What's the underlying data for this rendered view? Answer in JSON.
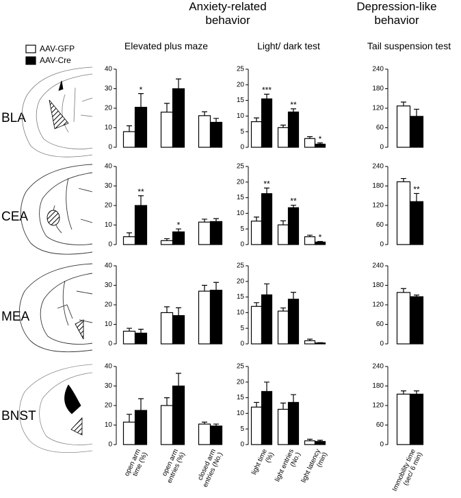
{
  "header": [
    "Anxiety-related behavior",
    "Depression-like behavior"
  ],
  "tests": [
    "Elevated plus maze",
    "Light/ dark test",
    "Tail suspension test"
  ],
  "regions": [
    "BLA",
    "CEA",
    "MEA",
    "BNST"
  ],
  "chart_data": [
    {
      "type": "bar",
      "ylim": [
        0,
        40
      ],
      "yticks": [
        0,
        10,
        20,
        30,
        40
      ],
      "categories": [
        null,
        null,
        null
      ],
      "series": [
        {
          "name": "AAV-GFP",
          "color": "#ffffff",
          "values": [
            8,
            18,
            16.2
          ],
          "errors": [
            3,
            4.5,
            2
          ]
        },
        {
          "name": "AAV-Cre",
          "color": "#000000",
          "values": [
            20.5,
            30,
            12.8
          ],
          "errors": [
            7,
            5,
            2
          ],
          "significance": [
            "*",
            null,
            null
          ]
        }
      ]
    },
    {
      "type": "bar",
      "ylim": [
        0,
        25
      ],
      "yticks": [
        0,
        5,
        10,
        15,
        20,
        25
      ],
      "categories": [
        null,
        null,
        null
      ],
      "series": [
        {
          "color": "#ffffff",
          "values": [
            8.2,
            6.3,
            2.8
          ],
          "errors": [
            1.2,
            0.8,
            0.6
          ]
        },
        {
          "color": "#000000",
          "values": [
            15.5,
            11.3,
            1.0
          ],
          "errors": [
            1.5,
            1,
            0.4
          ],
          "significance": [
            "***",
            "**",
            "*"
          ]
        }
      ]
    },
    {
      "type": "bar",
      "ylim": [
        0,
        240
      ],
      "yticks": [
        0,
        60,
        120,
        180,
        240
      ],
      "categories": [
        null
      ],
      "series": [
        {
          "color": "#ffffff",
          "values": [
            127
          ],
          "errors": [
            12
          ]
        },
        {
          "color": "#000000",
          "values": [
            95
          ],
          "errors": [
            22
          ],
          "significance": [
            null
          ]
        }
      ]
    },
    {
      "type": "bar",
      "ylim": [
        0,
        40
      ],
      "yticks": [
        0,
        10,
        20,
        30,
        40
      ],
      "categories": [
        null,
        null,
        null
      ],
      "series": [
        {
          "color": "#ffffff",
          "values": [
            4,
            2,
            11.5
          ],
          "errors": [
            2,
            1,
            1.5
          ]
        },
        {
          "color": "#000000",
          "values": [
            20,
            6.5,
            11.8
          ],
          "errors": [
            5,
            1.5,
            1.5
          ],
          "significance": [
            "**",
            "*",
            null
          ]
        }
      ]
    },
    {
      "type": "bar",
      "ylim": [
        0,
        25
      ],
      "yticks": [
        0,
        5,
        10,
        15,
        20,
        25
      ],
      "categories": [
        null,
        null,
        null
      ],
      "series": [
        {
          "color": "#ffffff",
          "values": [
            7.5,
            6.3,
            2.5
          ],
          "errors": [
            1.3,
            1.3,
            0.5
          ]
        },
        {
          "color": "#000000",
          "values": [
            16.3,
            11.8,
            0.8
          ],
          "errors": [
            1.8,
            0.8,
            0.2
          ],
          "significance": [
            "**",
            "**",
            "*"
          ]
        }
      ]
    },
    {
      "type": "bar",
      "ylim": [
        0,
        240
      ],
      "yticks": [
        0,
        60,
        120,
        180,
        240
      ],
      "categories": [
        null
      ],
      "series": [
        {
          "color": "#ffffff",
          "values": [
            193
          ],
          "errors": [
            10
          ]
        },
        {
          "color": "#000000",
          "values": [
            132
          ],
          "errors": [
            25
          ],
          "significance": [
            "**"
          ]
        }
      ]
    },
    {
      "type": "bar",
      "ylim": [
        0,
        40
      ],
      "yticks": [
        0,
        10,
        20,
        30,
        40
      ],
      "categories": [
        null,
        null,
        null
      ],
      "series": [
        {
          "color": "#ffffff",
          "values": [
            6.5,
            16,
            27
          ],
          "errors": [
            1.5,
            3,
            3
          ]
        },
        {
          "color": "#000000",
          "values": [
            5.5,
            14.5,
            27.5
          ],
          "errors": [
            2,
            4,
            4
          ],
          "significance": [
            null,
            null,
            null
          ]
        }
      ]
    },
    {
      "type": "bar",
      "ylim": [
        0,
        25
      ],
      "yticks": [
        0,
        5,
        10,
        15,
        20,
        25
      ],
      "categories": [
        null,
        null,
        null
      ],
      "series": [
        {
          "color": "#ffffff",
          "values": [
            12,
            10.5,
            1
          ],
          "errors": [
            1.2,
            1,
            0.5
          ]
        },
        {
          "color": "#000000",
          "values": [
            15.7,
            14.3,
            0.3
          ],
          "errors": [
            3.5,
            2.2,
            0.1
          ],
          "significance": [
            null,
            null,
            null
          ]
        }
      ]
    },
    {
      "type": "bar",
      "ylim": [
        0,
        240
      ],
      "yticks": [
        0,
        60,
        120,
        180,
        240
      ],
      "categories": [
        null
      ],
      "series": [
        {
          "color": "#ffffff",
          "values": [
            158
          ],
          "errors": [
            12
          ]
        },
        {
          "color": "#000000",
          "values": [
            145
          ],
          "errors": [
            5
          ],
          "significance": [
            null
          ]
        }
      ]
    },
    {
      "type": "bar",
      "ylim": [
        0,
        40
      ],
      "yticks": [
        0,
        10,
        20,
        30,
        40
      ],
      "categories": [
        "open arm time (%)",
        "open arm entries (%)",
        "closed arm entries (No.)"
      ],
      "series": [
        {
          "color": "#ffffff",
          "values": [
            11.5,
            20,
            10.5
          ],
          "errors": [
            4,
            4,
            1
          ]
        },
        {
          "color": "#000000",
          "values": [
            17.5,
            30,
            9.5
          ],
          "errors": [
            6,
            6.5,
            1
          ],
          "significance": [
            null,
            null,
            null
          ]
        }
      ]
    },
    {
      "type": "bar",
      "ylim": [
        0,
        25
      ],
      "yticks": [
        0,
        5,
        10,
        15,
        20,
        25
      ],
      "categories": [
        "light time (%)",
        "light entries (No.)",
        "light latency (min)"
      ],
      "series": [
        {
          "color": "#ffffff",
          "values": [
            12,
            11.3,
            1.2
          ],
          "errors": [
            1.5,
            2,
            0.5
          ]
        },
        {
          "color": "#000000",
          "values": [
            17,
            13.5,
            1
          ],
          "errors": [
            3,
            2.5,
            0.4
          ],
          "significance": [
            null,
            null,
            null
          ]
        }
      ]
    },
    {
      "type": "bar",
      "ylim": [
        0,
        240
      ],
      "yticks": [
        0,
        60,
        120,
        180,
        240
      ],
      "categories": [
        "Immobility time (sec/ 6 min)"
      ],
      "series": [
        {
          "color": "#ffffff",
          "values": [
            155
          ],
          "errors": [
            10
          ]
        },
        {
          "color": "#000000",
          "values": [
            155
          ],
          "errors": [
            10
          ],
          "significance": [
            null
          ]
        }
      ]
    }
  ]
}
